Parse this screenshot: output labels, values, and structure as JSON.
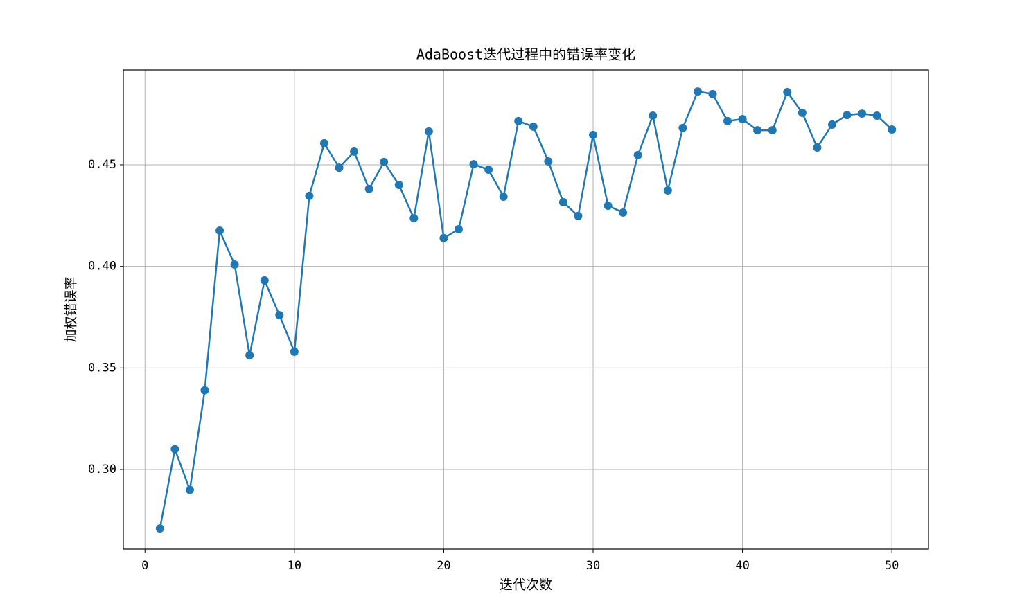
{
  "chart_data": {
    "type": "line",
    "title": "AdaBoost迭代过程中的错误率变化",
    "xlabel": "迭代次数",
    "ylabel": "加权错误率",
    "x": [
      1,
      2,
      3,
      4,
      5,
      6,
      7,
      8,
      9,
      10,
      11,
      12,
      13,
      14,
      15,
      16,
      17,
      18,
      19,
      20,
      21,
      22,
      23,
      24,
      25,
      26,
      27,
      28,
      29,
      30,
      31,
      32,
      33,
      34,
      35,
      36,
      37,
      38,
      39,
      40,
      41,
      42,
      43,
      44,
      45,
      46,
      47,
      48,
      49,
      50
    ],
    "series": [
      {
        "color": "#1f77b4",
        "values": [
          0.271,
          0.31,
          0.29,
          0.339,
          0.4176,
          0.4009,
          0.3562,
          0.3931,
          0.376,
          0.358,
          0.4347,
          0.4606,
          0.4486,
          0.4565,
          0.4381,
          0.4514,
          0.4401,
          0.4237,
          0.4664,
          0.4139,
          0.4183,
          0.4503,
          0.4476,
          0.4343,
          0.4715,
          0.4688,
          0.4517,
          0.4316,
          0.4248,
          0.4647,
          0.4299,
          0.4265,
          0.4548,
          0.4742,
          0.4374,
          0.4681,
          0.4861,
          0.4848,
          0.4715,
          0.4725,
          0.467,
          0.467,
          0.4858,
          0.4756,
          0.4585,
          0.4698,
          0.4745,
          0.4752,
          0.4742,
          0.4674
        ]
      }
    ],
    "xlim": [
      -1.45,
      52.45
    ],
    "xticks": [
      0,
      10,
      20,
      30,
      40,
      50
    ],
    "ylim": [
      0.2608,
      0.4967
    ],
    "yticks": [
      {
        "value": 0.3,
        "label": "0.30"
      },
      {
        "value": 0.35,
        "label": "0.35"
      },
      {
        "value": 0.4,
        "label": "0.40"
      },
      {
        "value": 0.45,
        "label": "0.45"
      }
    ],
    "grid": true
  }
}
